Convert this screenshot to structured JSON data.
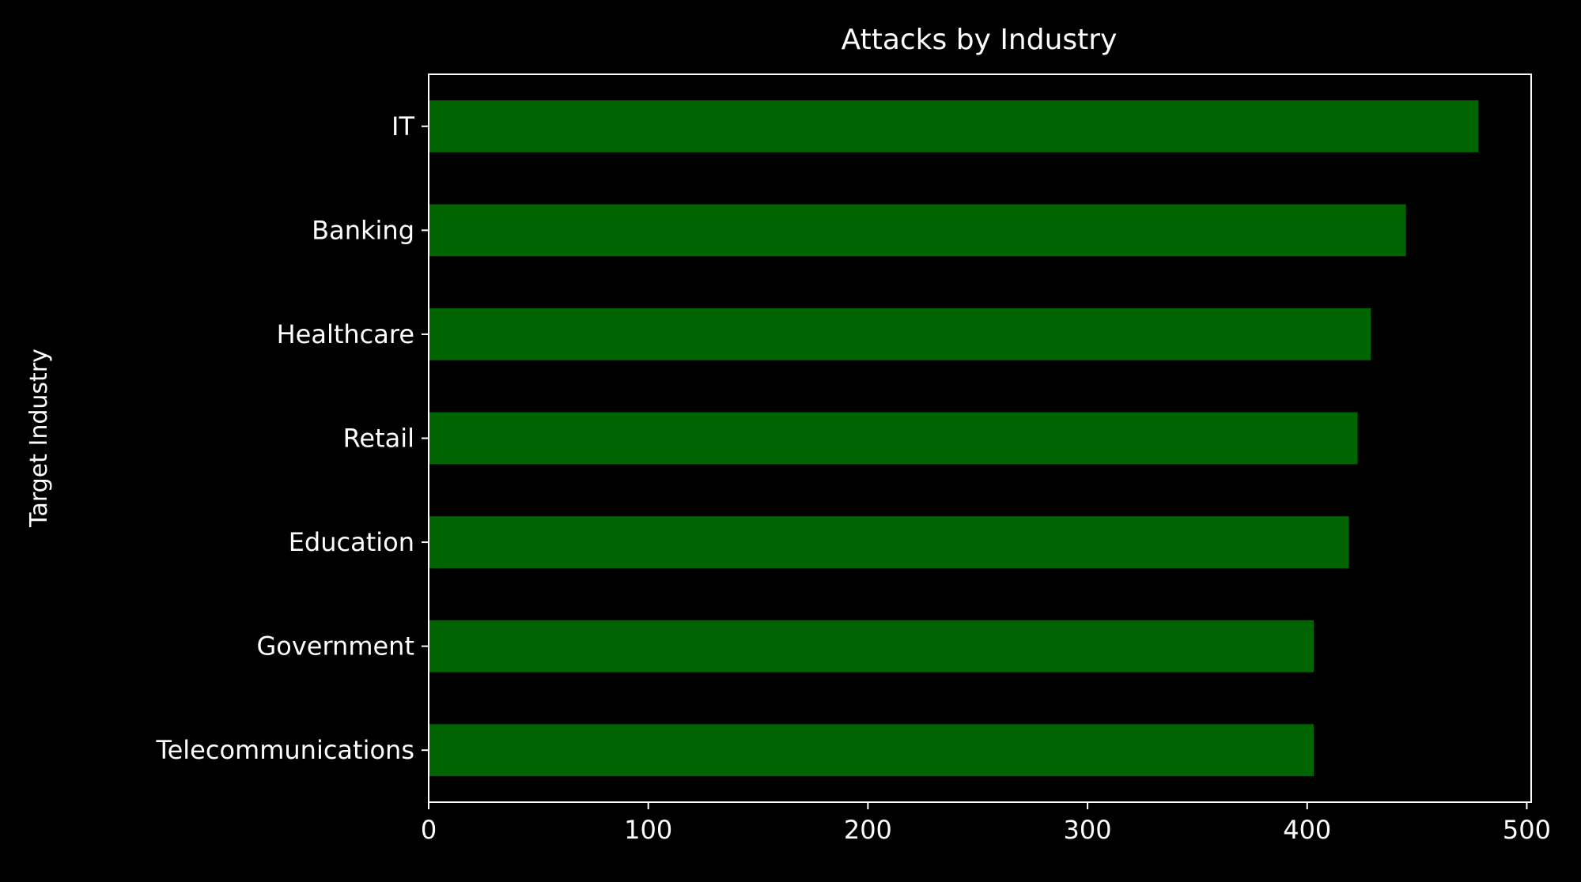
{
  "chart_data": {
    "type": "bar",
    "orientation": "horizontal",
    "title": "Attacks by Industry",
    "xlabel": "",
    "ylabel": "Target Industry",
    "categories": [
      "IT",
      "Banking",
      "Healthcare",
      "Retail",
      "Education",
      "Government",
      "Telecommunications"
    ],
    "values": [
      478,
      445,
      429,
      423,
      419,
      403,
      403
    ],
    "xlim": [
      0,
      502
    ],
    "xticks": [
      0,
      100,
      200,
      300,
      400,
      500
    ],
    "xtick_labels": [
      "0",
      "100",
      "200",
      "300",
      "400",
      "500"
    ],
    "grid": false,
    "legend": "none",
    "colors": {
      "background": "#000000",
      "bar": "#006400",
      "axes": "#ffffff",
      "text": "#ffffff"
    }
  }
}
